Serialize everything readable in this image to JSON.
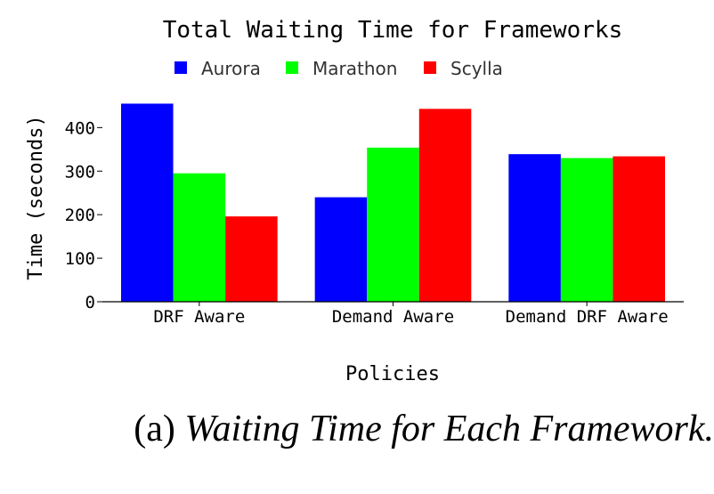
{
  "chart_data": {
    "type": "bar",
    "title": "Total Waiting Time for Frameworks",
    "xlabel": "Policies",
    "ylabel": "Time (seconds)",
    "categories": [
      "DRF Aware",
      "Demand Aware",
      "Demand DRF Aware"
    ],
    "series": [
      {
        "name": "Aurora",
        "color": "#0000ff",
        "values": [
          455,
          240,
          339
        ]
      },
      {
        "name": "Marathon",
        "color": "#00ff00",
        "values": [
          295,
          354,
          330
        ]
      },
      {
        "name": "Scylla",
        "color": "#ff0000",
        "values": [
          196,
          443,
          334
        ]
      }
    ],
    "ylim": [
      0,
      460
    ],
    "yticks": [
      0,
      100,
      200,
      300,
      400
    ],
    "grid": false,
    "legend_position": "top"
  },
  "caption": {
    "prefix": "(a) ",
    "text": "Waiting Time for Each Framework."
  }
}
